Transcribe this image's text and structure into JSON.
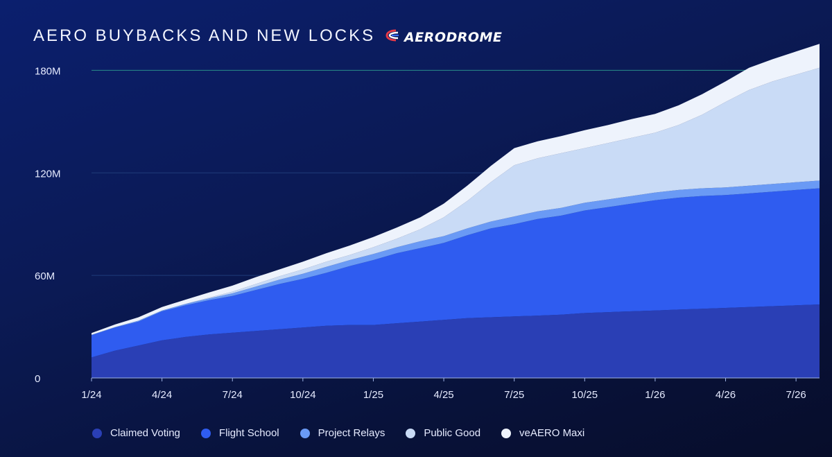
{
  "header": {
    "title": "AERO BUYBACKS AND NEW LOCKS",
    "brand_name": "AERODROME",
    "brand_icon": "aerodrome-logo-icon",
    "brand_colors": [
      "#e63946",
      "#ffffff",
      "#3a6cf4"
    ]
  },
  "chart_data": {
    "type": "area",
    "stacked": true,
    "title": "AERO BUYBACKS AND NEW LOCKS",
    "xlabel": "",
    "ylabel": "",
    "x_ticks": [
      "1/24",
      "4/24",
      "7/24",
      "10/24",
      "1/25",
      "4/25",
      "7/25",
      "10/25",
      "1/26",
      "4/26",
      "7/26"
    ],
    "y_ticks": [
      "0",
      "60M",
      "120M",
      "180M"
    ],
    "y_tick_values": [
      0,
      60,
      120,
      180
    ],
    "ylim": [
      0,
      196
    ],
    "unit": "M",
    "grid": true,
    "legend_position": "bottom",
    "x": [
      "1/24",
      "2/24",
      "3/24",
      "4/24",
      "5/24",
      "6/24",
      "7/24",
      "8/24",
      "9/24",
      "10/24",
      "11/24",
      "12/24",
      "1/25",
      "2/25",
      "3/25",
      "4/25",
      "5/25",
      "6/25",
      "7/25",
      "8/25",
      "9/25",
      "10/25",
      "11/25",
      "12/25",
      "1/26",
      "2/26",
      "3/26",
      "4/26",
      "5/26",
      "6/26",
      "7/26",
      "8/26"
    ],
    "series": [
      {
        "name": "Claimed Voting",
        "color": "#2a3fb5",
        "values": [
          12,
          16,
          19,
          22,
          24,
          25.5,
          26.5,
          27.5,
          28.5,
          29.5,
          30.5,
          31,
          31,
          32,
          33,
          34,
          35,
          35.5,
          36,
          36.5,
          37,
          38,
          38.5,
          39,
          39.5,
          40,
          40.5,
          41,
          41.5,
          42,
          42.5,
          43
        ]
      },
      {
        "name": "Flight School",
        "color": "#2f5cf0",
        "values": [
          13,
          13.5,
          14,
          17,
          18.5,
          20,
          21.5,
          24,
          26.5,
          28.5,
          31,
          34.5,
          38,
          41,
          43,
          45,
          48.5,
          52,
          54,
          56.5,
          58,
          60,
          61.5,
          63,
          64.5,
          65.5,
          66,
          66,
          66.5,
          67,
          67.5,
          68
        ]
      },
      {
        "name": "Project Relays",
        "color": "#6a9af5",
        "values": [
          0.3,
          0.3,
          0.5,
          0.5,
          0.8,
          1,
          1.5,
          2,
          2.5,
          3,
          3.5,
          3.5,
          3.5,
          3.5,
          4,
          4,
          4,
          4,
          4.5,
          4.5,
          4.5,
          4.5,
          4.5,
          4.5,
          4.5,
          4.5,
          4.5,
          4.5,
          4.5,
          4.5,
          4.5,
          4.5
        ]
      },
      {
        "name": "Public Good",
        "color": "#c9dbf6",
        "values": [
          0,
          0,
          0,
          0,
          0,
          0.5,
          1,
          1.5,
          2,
          2.5,
          3,
          3,
          4,
          5,
          7,
          11,
          16,
          23,
          30,
          31,
          32,
          32,
          33,
          34,
          35,
          38,
          43,
          50,
          56,
          60,
          63,
          66
        ]
      },
      {
        "name": "veAERO Maxi",
        "color": "#eef3fc",
        "values": [
          1,
          1.5,
          2,
          2,
          2.5,
          3,
          3.5,
          4,
          4,
          4.5,
          5,
          5.5,
          6,
          6.5,
          7,
          8,
          9,
          9.5,
          10,
          10,
          10,
          10.5,
          10.5,
          11,
          11,
          11.5,
          12,
          12,
          13,
          13,
          13.5,
          14
        ]
      }
    ]
  }
}
